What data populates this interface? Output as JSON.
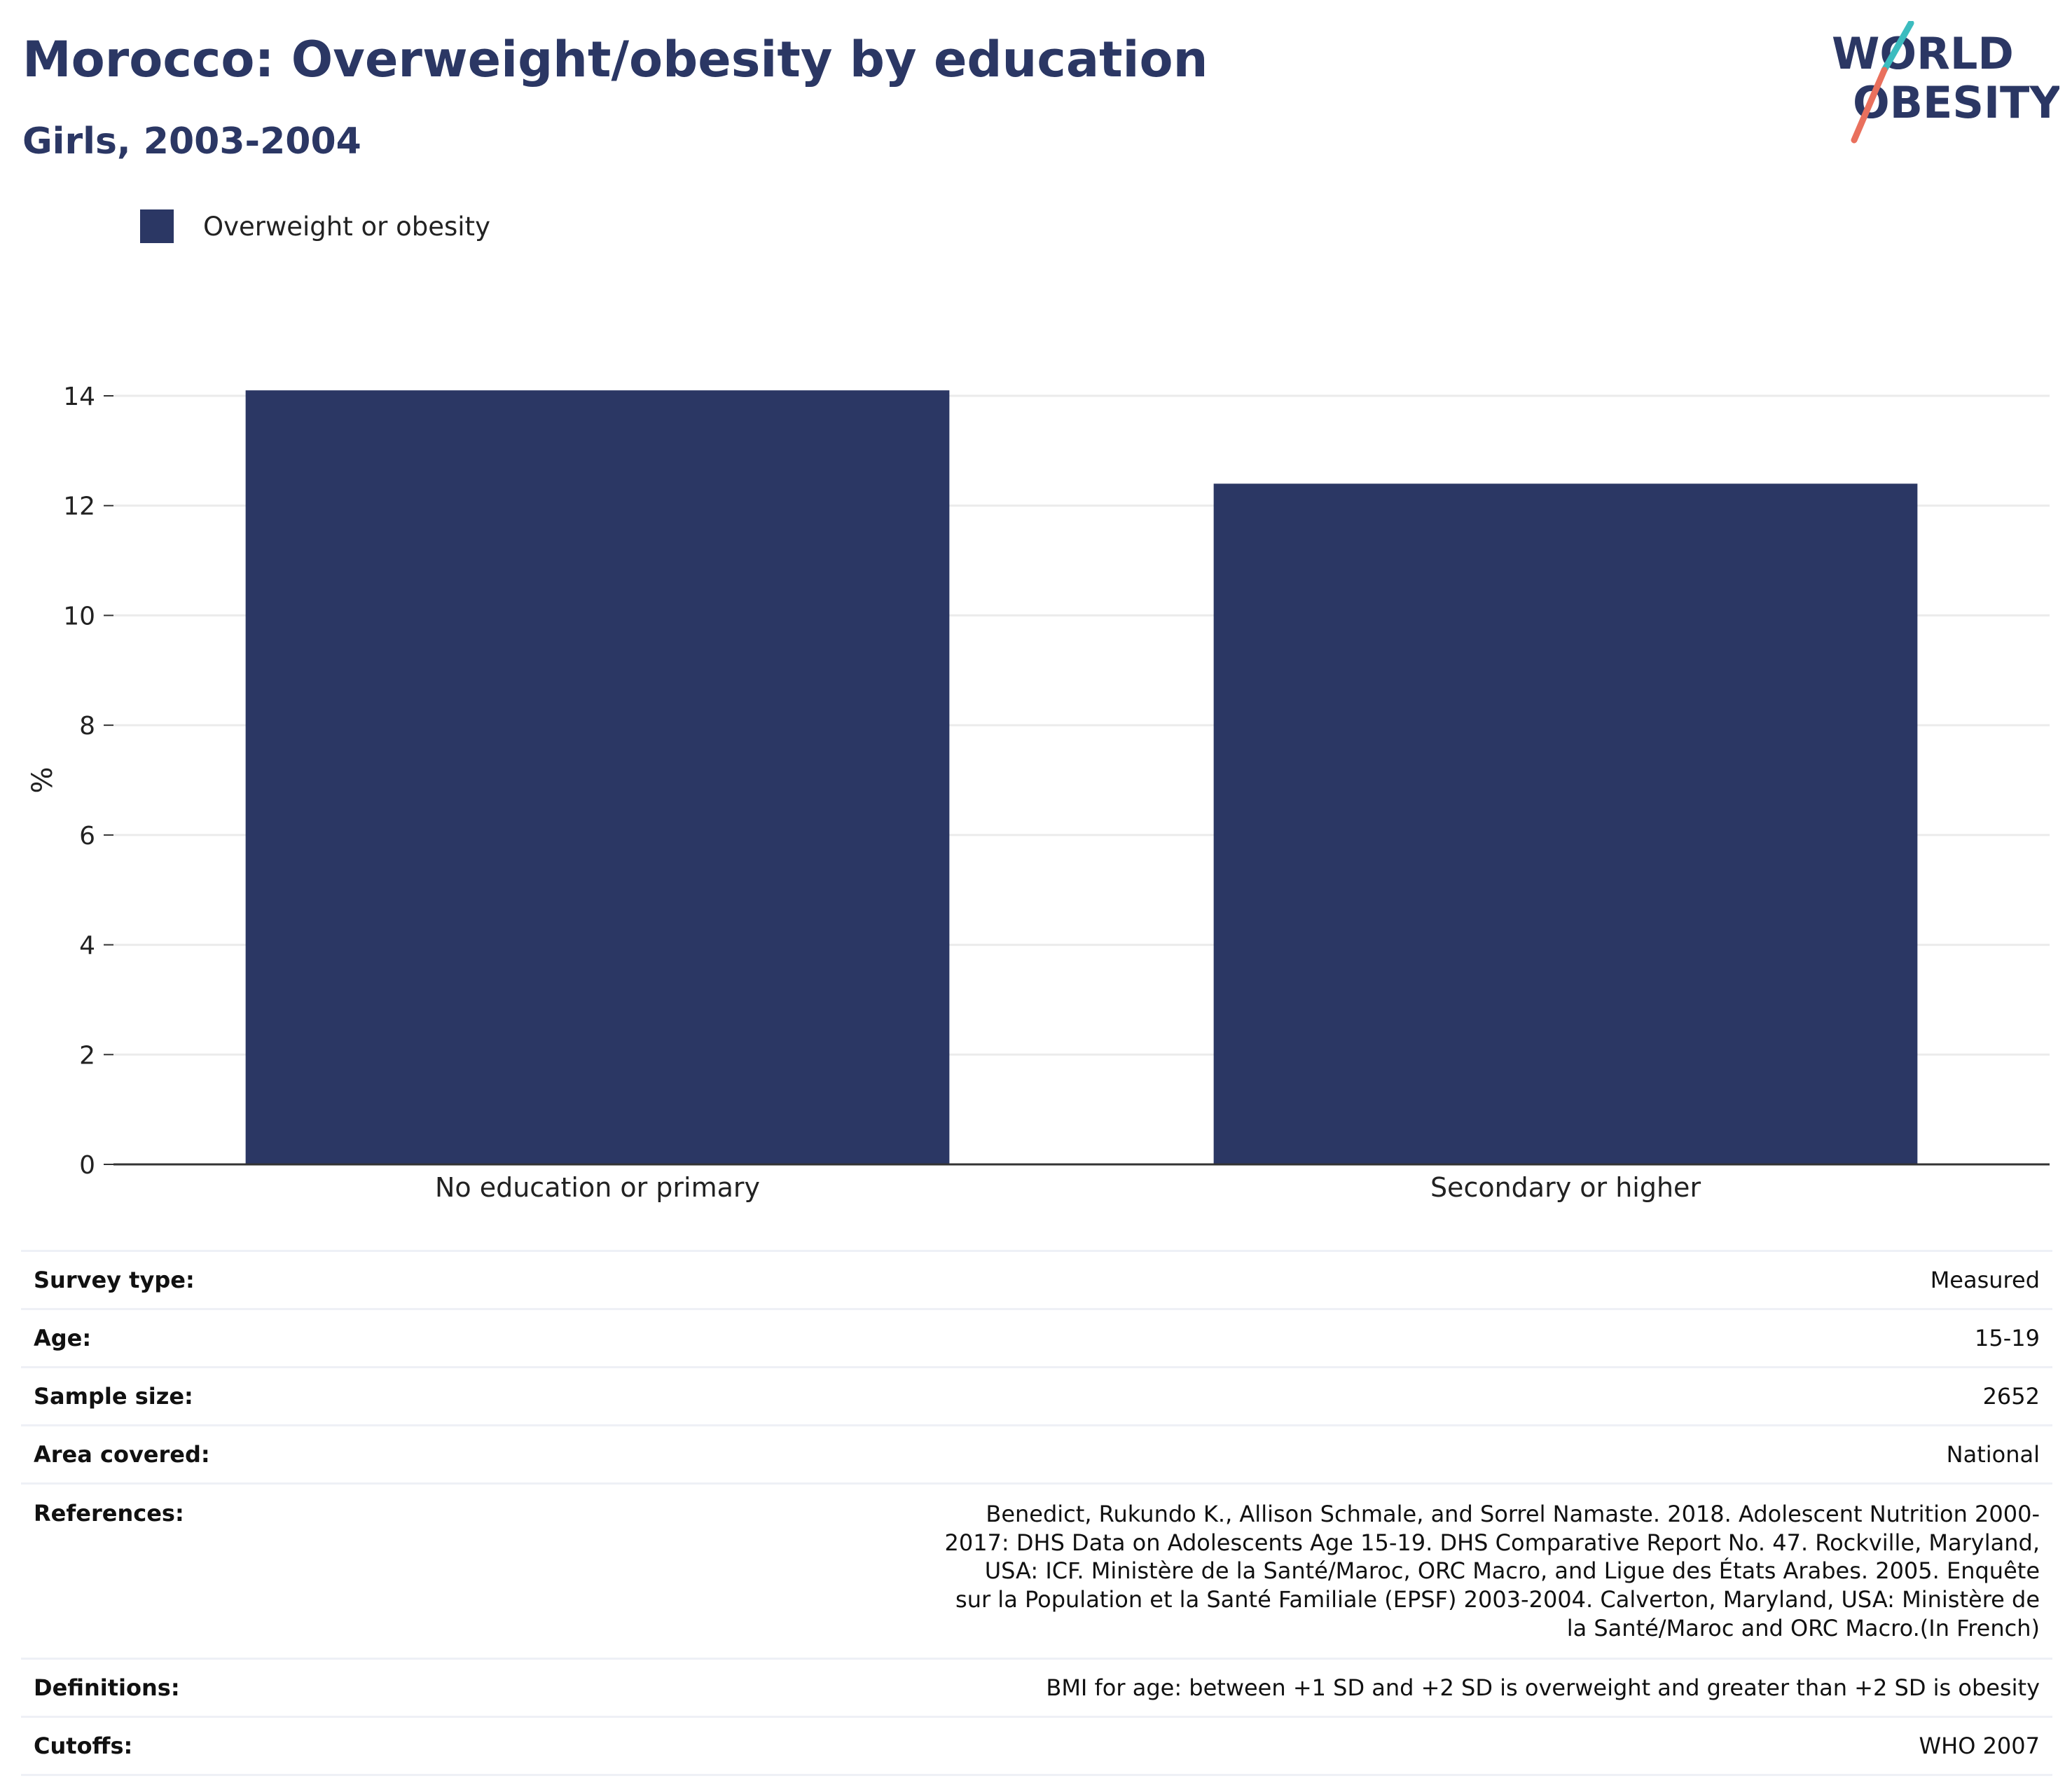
{
  "header": {
    "title": "Morocco: Overweight/obesity by education",
    "subtitle": "Girls, 2003-2004"
  },
  "logo": {
    "line1": "WORLD",
    "line2": "OBESITY",
    "accent_teal": "#3cbcbf",
    "accent_coral": "#e9705d",
    "text_color": "#2b3764"
  },
  "legend": {
    "items": [
      {
        "label": "Overweight or obesity",
        "color": "#2b3764"
      }
    ]
  },
  "chart_data": {
    "type": "bar",
    "categories": [
      "No education or primary",
      "Secondary or higher"
    ],
    "series": [
      {
        "name": "Overweight or obesity",
        "values": [
          14.1,
          12.4
        ],
        "color": "#2b3764"
      }
    ],
    "ylabel": "%",
    "xlabel": "",
    "ylim": [
      0,
      14
    ],
    "yticks": [
      0,
      2,
      4,
      6,
      8,
      10,
      12,
      14
    ],
    "grid": true,
    "legend_position": "top-left"
  },
  "info": {
    "rows": [
      {
        "key": "Survey type:",
        "value": "Measured"
      },
      {
        "key": "Age:",
        "value": "15-19"
      },
      {
        "key": "Sample size:",
        "value": "2652"
      },
      {
        "key": "Area covered:",
        "value": "National"
      },
      {
        "key": "References:",
        "value": "Benedict, Rukundo K., Allison Schmale, and Sorrel Namaste. 2018. Adolescent Nutrition 2000-2017: DHS Data on Adolescents Age 15-19. DHS Comparative Report No. 47. Rockville, Maryland, USA: ICF. Ministère de la Santé/Maroc, ORC Macro, and Ligue des États Arabes. 2005. Enquête sur la Population et la Santé Familiale (EPSF) 2003-2004. Calverton, Maryland, USA: Ministère de la Santé/Maroc and ORC Macro.(In French)"
      },
      {
        "key": "Definitions:",
        "value": "BMI for age: between +1 SD and +2 SD is overweight and greater than +2 SD is obesity"
      },
      {
        "key": "Cutoffs:",
        "value": "WHO 2007"
      }
    ]
  }
}
